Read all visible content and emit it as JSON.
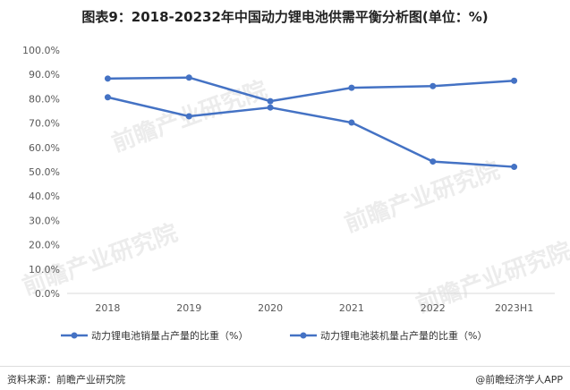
{
  "title": "图表9：2018-20232年中国动力锂电池供需平衡分析图(单位：%)",
  "footer": {
    "source": "资料来源：前瞻产业研究院",
    "credit": "@前瞻经济学人APP"
  },
  "watermark": "前瞻产业研究院",
  "colors": {
    "series": "#4472C4",
    "axis": "#d9d9d9",
    "text": "#595959"
  },
  "chart_data": {
    "type": "line",
    "categories": [
      "2018",
      "2019",
      "2020",
      "2021",
      "2022",
      "2023H1"
    ],
    "ylim": [
      0,
      100
    ],
    "yticks": [
      "0.0%",
      "10.0%",
      "20.0%",
      "30.0%",
      "40.0%",
      "50.0%",
      "60.0%",
      "70.0%",
      "80.0%",
      "90.0%",
      "100.0%"
    ],
    "grid": false,
    "legend_position": "bottom",
    "series": [
      {
        "name": "动力锂电池销量占产量的比重（%）",
        "values": [
          88.3,
          88.7,
          79.0,
          84.5,
          85.2,
          87.4
        ]
      },
      {
        "name": "动力锂电池装机量占产量的比重（%）",
        "values": [
          80.6,
          72.8,
          76.4,
          70.2,
          54.2,
          52.0
        ]
      }
    ]
  }
}
